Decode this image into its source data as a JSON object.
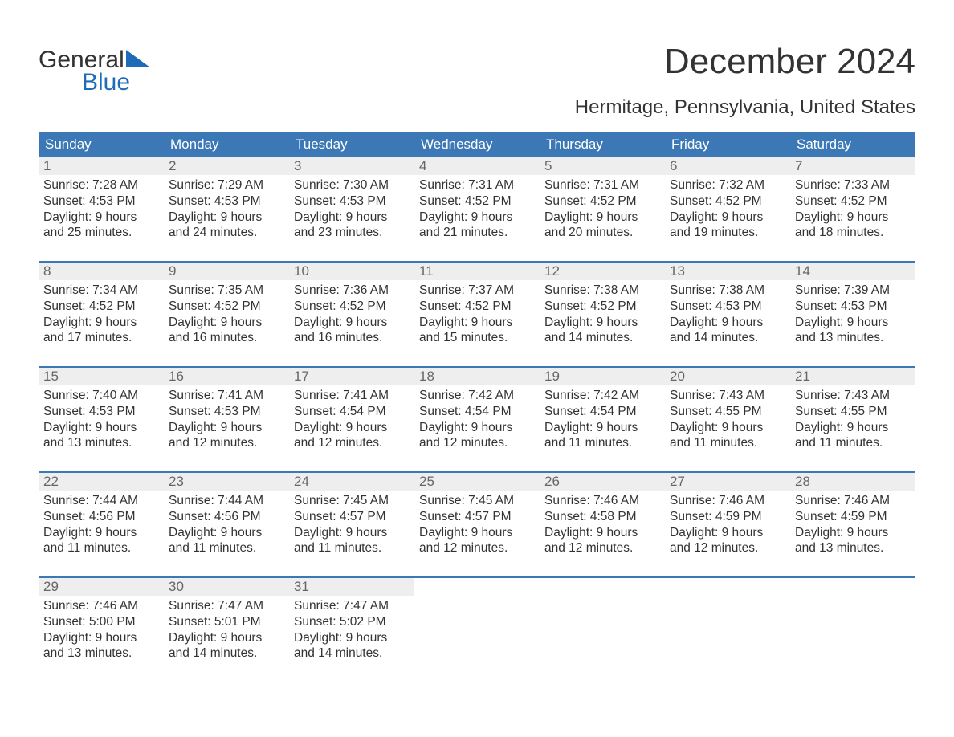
{
  "logo": {
    "line1": "General",
    "line2": "Blue",
    "tri_color": "#1e6bb8"
  },
  "title": "December 2024",
  "subtitle": "Hermitage, Pennsylvania, United States",
  "colors": {
    "header_bg": "#3b78b5",
    "header_text": "#ffffff",
    "daynum_bg": "#eeeeee",
    "daynum_text": "#666666",
    "body_text": "#333333",
    "rule": "#3b78b5"
  },
  "day_headers": [
    "Sunday",
    "Monday",
    "Tuesday",
    "Wednesday",
    "Thursday",
    "Friday",
    "Saturday"
  ],
  "weeks": [
    [
      {
        "num": "1",
        "sunrise": "Sunrise: 7:28 AM",
        "sunset": "Sunset: 4:53 PM",
        "d1": "Daylight: 9 hours",
        "d2": "and 25 minutes."
      },
      {
        "num": "2",
        "sunrise": "Sunrise: 7:29 AM",
        "sunset": "Sunset: 4:53 PM",
        "d1": "Daylight: 9 hours",
        "d2": "and 24 minutes."
      },
      {
        "num": "3",
        "sunrise": "Sunrise: 7:30 AM",
        "sunset": "Sunset: 4:53 PM",
        "d1": "Daylight: 9 hours",
        "d2": "and 23 minutes."
      },
      {
        "num": "4",
        "sunrise": "Sunrise: 7:31 AM",
        "sunset": "Sunset: 4:52 PM",
        "d1": "Daylight: 9 hours",
        "d2": "and 21 minutes."
      },
      {
        "num": "5",
        "sunrise": "Sunrise: 7:31 AM",
        "sunset": "Sunset: 4:52 PM",
        "d1": "Daylight: 9 hours",
        "d2": "and 20 minutes."
      },
      {
        "num": "6",
        "sunrise": "Sunrise: 7:32 AM",
        "sunset": "Sunset: 4:52 PM",
        "d1": "Daylight: 9 hours",
        "d2": "and 19 minutes."
      },
      {
        "num": "7",
        "sunrise": "Sunrise: 7:33 AM",
        "sunset": "Sunset: 4:52 PM",
        "d1": "Daylight: 9 hours",
        "d2": "and 18 minutes."
      }
    ],
    [
      {
        "num": "8",
        "sunrise": "Sunrise: 7:34 AM",
        "sunset": "Sunset: 4:52 PM",
        "d1": "Daylight: 9 hours",
        "d2": "and 17 minutes."
      },
      {
        "num": "9",
        "sunrise": "Sunrise: 7:35 AM",
        "sunset": "Sunset: 4:52 PM",
        "d1": "Daylight: 9 hours",
        "d2": "and 16 minutes."
      },
      {
        "num": "10",
        "sunrise": "Sunrise: 7:36 AM",
        "sunset": "Sunset: 4:52 PM",
        "d1": "Daylight: 9 hours",
        "d2": "and 16 minutes."
      },
      {
        "num": "11",
        "sunrise": "Sunrise: 7:37 AM",
        "sunset": "Sunset: 4:52 PM",
        "d1": "Daylight: 9 hours",
        "d2": "and 15 minutes."
      },
      {
        "num": "12",
        "sunrise": "Sunrise: 7:38 AM",
        "sunset": "Sunset: 4:52 PM",
        "d1": "Daylight: 9 hours",
        "d2": "and 14 minutes."
      },
      {
        "num": "13",
        "sunrise": "Sunrise: 7:38 AM",
        "sunset": "Sunset: 4:53 PM",
        "d1": "Daylight: 9 hours",
        "d2": "and 14 minutes."
      },
      {
        "num": "14",
        "sunrise": "Sunrise: 7:39 AM",
        "sunset": "Sunset: 4:53 PM",
        "d1": "Daylight: 9 hours",
        "d2": "and 13 minutes."
      }
    ],
    [
      {
        "num": "15",
        "sunrise": "Sunrise: 7:40 AM",
        "sunset": "Sunset: 4:53 PM",
        "d1": "Daylight: 9 hours",
        "d2": "and 13 minutes."
      },
      {
        "num": "16",
        "sunrise": "Sunrise: 7:41 AM",
        "sunset": "Sunset: 4:53 PM",
        "d1": "Daylight: 9 hours",
        "d2": "and 12 minutes."
      },
      {
        "num": "17",
        "sunrise": "Sunrise: 7:41 AM",
        "sunset": "Sunset: 4:54 PM",
        "d1": "Daylight: 9 hours",
        "d2": "and 12 minutes."
      },
      {
        "num": "18",
        "sunrise": "Sunrise: 7:42 AM",
        "sunset": "Sunset: 4:54 PM",
        "d1": "Daylight: 9 hours",
        "d2": "and 12 minutes."
      },
      {
        "num": "19",
        "sunrise": "Sunrise: 7:42 AM",
        "sunset": "Sunset: 4:54 PM",
        "d1": "Daylight: 9 hours",
        "d2": "and 11 minutes."
      },
      {
        "num": "20",
        "sunrise": "Sunrise: 7:43 AM",
        "sunset": "Sunset: 4:55 PM",
        "d1": "Daylight: 9 hours",
        "d2": "and 11 minutes."
      },
      {
        "num": "21",
        "sunrise": "Sunrise: 7:43 AM",
        "sunset": "Sunset: 4:55 PM",
        "d1": "Daylight: 9 hours",
        "d2": "and 11 minutes."
      }
    ],
    [
      {
        "num": "22",
        "sunrise": "Sunrise: 7:44 AM",
        "sunset": "Sunset: 4:56 PM",
        "d1": "Daylight: 9 hours",
        "d2": "and 11 minutes."
      },
      {
        "num": "23",
        "sunrise": "Sunrise: 7:44 AM",
        "sunset": "Sunset: 4:56 PM",
        "d1": "Daylight: 9 hours",
        "d2": "and 11 minutes."
      },
      {
        "num": "24",
        "sunrise": "Sunrise: 7:45 AM",
        "sunset": "Sunset: 4:57 PM",
        "d1": "Daylight: 9 hours",
        "d2": "and 11 minutes."
      },
      {
        "num": "25",
        "sunrise": "Sunrise: 7:45 AM",
        "sunset": "Sunset: 4:57 PM",
        "d1": "Daylight: 9 hours",
        "d2": "and 12 minutes."
      },
      {
        "num": "26",
        "sunrise": "Sunrise: 7:46 AM",
        "sunset": "Sunset: 4:58 PM",
        "d1": "Daylight: 9 hours",
        "d2": "and 12 minutes."
      },
      {
        "num": "27",
        "sunrise": "Sunrise: 7:46 AM",
        "sunset": "Sunset: 4:59 PM",
        "d1": "Daylight: 9 hours",
        "d2": "and 12 minutes."
      },
      {
        "num": "28",
        "sunrise": "Sunrise: 7:46 AM",
        "sunset": "Sunset: 4:59 PM",
        "d1": "Daylight: 9 hours",
        "d2": "and 13 minutes."
      }
    ],
    [
      {
        "num": "29",
        "sunrise": "Sunrise: 7:46 AM",
        "sunset": "Sunset: 5:00 PM",
        "d1": "Daylight: 9 hours",
        "d2": "and 13 minutes."
      },
      {
        "num": "30",
        "sunrise": "Sunrise: 7:47 AM",
        "sunset": "Sunset: 5:01 PM",
        "d1": "Daylight: 9 hours",
        "d2": "and 14 minutes."
      },
      {
        "num": "31",
        "sunrise": "Sunrise: 7:47 AM",
        "sunset": "Sunset: 5:02 PM",
        "d1": "Daylight: 9 hours",
        "d2": "and 14 minutes."
      },
      null,
      null,
      null,
      null
    ]
  ]
}
